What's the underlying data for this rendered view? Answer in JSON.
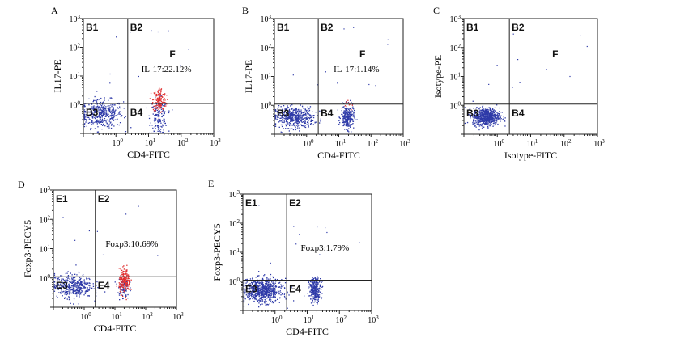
{
  "chart_data": [
    {
      "type": "scatter",
      "panel_letter": "A",
      "xlabel": "CD4-FITC",
      "ylabel": "IL17-PE",
      "x_ticks": [
        "10^0",
        "10^1",
        "10^2",
        "10^3"
      ],
      "y_ticks": [
        "10^0",
        "10^1",
        "10^2",
        "10^3"
      ],
      "xlim": [
        0.1,
        1000
      ],
      "ylim": [
        0.1,
        1000
      ],
      "log_scale": true,
      "quadrant_labels": [
        "B1",
        "B2",
        "B3",
        "B4"
      ],
      "gate_x": 2.3,
      "gate_y": 1.1,
      "gate_label": "F",
      "annotation": "IL-17:22.12%",
      "populations": [
        {
          "color": "#2e3aa8",
          "center": [
            0.35,
            0.5
          ],
          "spread": [
            0.33,
            0.24
          ],
          "count": 420
        },
        {
          "color": "#2e3aa8",
          "center": [
            20,
            0.4
          ],
          "spread": [
            0.13,
            0.3
          ],
          "count": 160
        },
        {
          "color": "#e03030",
          "center": [
            21,
            1.5
          ],
          "spread": [
            0.1,
            0.22
          ],
          "count": 150
        }
      ]
    },
    {
      "type": "scatter",
      "panel_letter": "B",
      "xlabel": "CD4-FITC",
      "ylabel": "IL17-PE",
      "x_ticks": [
        "10^0",
        "10^1",
        "10^2",
        "10^3"
      ],
      "y_ticks": [
        "10^0",
        "10^1",
        "10^2",
        "10^3"
      ],
      "xlim": [
        0.1,
        1000
      ],
      "ylim": [
        0.1,
        1000
      ],
      "log_scale": true,
      "quadrant_labels": [
        "B1",
        "B2",
        "B3",
        "B4"
      ],
      "gate_x": 2.3,
      "gate_y": 1.1,
      "gate_label": "F",
      "annotation": "IL-17:1.14%",
      "populations": [
        {
          "color": "#2e3aa8",
          "center": [
            0.4,
            0.4
          ],
          "spread": [
            0.3,
            0.18
          ],
          "count": 480
        },
        {
          "color": "#2e3aa8",
          "center": [
            18,
            0.4
          ],
          "spread": [
            0.1,
            0.2
          ],
          "count": 260
        },
        {
          "color": "#e03030",
          "center": [
            18,
            1.2
          ],
          "spread": [
            0.07,
            0.1
          ],
          "count": 10
        }
      ]
    },
    {
      "type": "scatter",
      "panel_letter": "C",
      "xlabel": "Isotype-FITC",
      "ylabel": "Isotype-PE",
      "x_ticks": [
        "10^0",
        "10^1",
        "10^2",
        "10^3"
      ],
      "y_ticks": [
        "10^0",
        "10^1",
        "10^2",
        "10^3"
      ],
      "xlim": [
        0.1,
        1000
      ],
      "ylim": [
        0.1,
        1000
      ],
      "log_scale": true,
      "quadrant_labels": [
        "B1",
        "B2",
        "B3",
        "B4"
      ],
      "gate_x": 2.3,
      "gate_y": 1.1,
      "gate_label": "F",
      "annotation": "",
      "populations": [
        {
          "color": "#2e3aa8",
          "center": [
            0.45,
            0.42
          ],
          "spread": [
            0.2,
            0.15
          ],
          "count": 650
        }
      ]
    },
    {
      "type": "scatter",
      "panel_letter": "D",
      "xlabel": "CD4-FITC",
      "ylabel": "Foxp3-PECY5",
      "x_ticks": [
        "10^0",
        "10^1",
        "10^2",
        "10^3"
      ],
      "y_ticks": [
        "10^0",
        "10^1",
        "10^2",
        "10^3"
      ],
      "xlim": [
        0.1,
        1000
      ],
      "ylim": [
        0.1,
        1000
      ],
      "log_scale": true,
      "quadrant_labels": [
        "E1",
        "E2",
        "E3",
        "E4"
      ],
      "gate_x": 2.3,
      "gate_y": 1.1,
      "gate_label": "",
      "annotation": "Foxp3:10.69%",
      "populations": [
        {
          "color": "#2e3aa8",
          "center": [
            0.4,
            0.55
          ],
          "spread": [
            0.32,
            0.2
          ],
          "count": 420
        },
        {
          "color": "#2e3aa8",
          "center": [
            18,
            0.5
          ],
          "spread": [
            0.09,
            0.2
          ],
          "count": 80
        },
        {
          "color": "#e03030",
          "center": [
            20,
            0.8
          ],
          "spread": [
            0.09,
            0.2
          ],
          "count": 200
        }
      ]
    },
    {
      "type": "scatter",
      "panel_letter": "E",
      "xlabel": "CD4-FITC",
      "ylabel": "Foxp3-PECY5",
      "x_ticks": [
        "10^0",
        "10^1",
        "10^2",
        "10^3"
      ],
      "y_ticks": [
        "10^0",
        "10^1",
        "10^2",
        "10^3"
      ],
      "xlim": [
        0.1,
        1000
      ],
      "ylim": [
        0.1,
        1000
      ],
      "log_scale": true,
      "quadrant_labels": [
        "E1",
        "E2",
        "E3",
        "E4"
      ],
      "gate_x": 2.3,
      "gate_y": 1.1,
      "gate_label": "",
      "annotation": "Foxp3:1.79%",
      "populations": [
        {
          "color": "#2e3aa8",
          "center": [
            0.4,
            0.5
          ],
          "spread": [
            0.3,
            0.2
          ],
          "count": 700
        },
        {
          "color": "#2e3aa8",
          "center": [
            17,
            0.55
          ],
          "spread": [
            0.09,
            0.2
          ],
          "count": 280
        }
      ]
    }
  ]
}
